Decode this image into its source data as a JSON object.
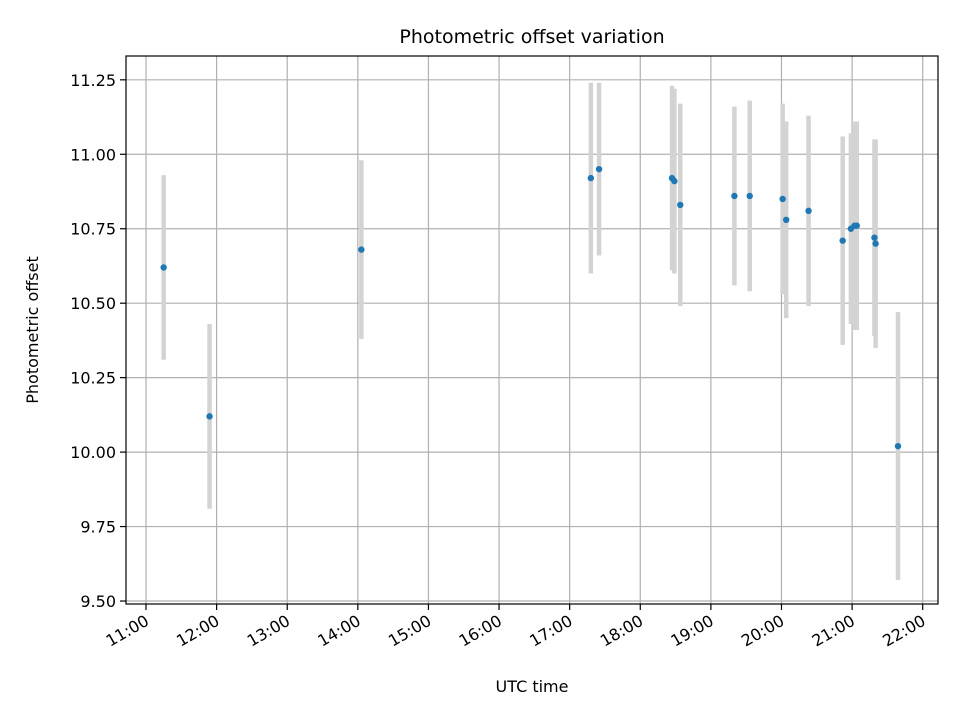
{
  "chart_data": {
    "type": "scatter",
    "title": "Photometric offset variation",
    "xlabel": "UTC time",
    "ylabel": "Photometric offset",
    "x_unit": "UTC",
    "xlim": [
      "10:43",
      "22:13"
    ],
    "ylim": [
      9.49,
      11.33
    ],
    "x_ticks": [
      "11:00",
      "12:00",
      "13:00",
      "14:00",
      "15:00",
      "16:00",
      "17:00",
      "18:00",
      "19:00",
      "20:00",
      "21:00",
      "22:00"
    ],
    "y_ticks": [
      "9.50",
      "9.75",
      "10.00",
      "10.25",
      "10.50",
      "10.75",
      "11.00",
      "11.25"
    ],
    "grid": true,
    "point_color": "#1f77b4",
    "errorbar_color": "#d3d3d3",
    "points": [
      {
        "x": "11:15",
        "y": 10.62,
        "err": 0.31
      },
      {
        "x": "11:54",
        "y": 10.12,
        "err": 0.31
      },
      {
        "x": "14:03",
        "y": 10.68,
        "err": 0.3
      },
      {
        "x": "17:18",
        "y": 10.92,
        "err": 0.32
      },
      {
        "x": "17:25",
        "y": 10.95,
        "err": 0.29
      },
      {
        "x": "18:27",
        "y": 10.92,
        "err": 0.31
      },
      {
        "x": "18:29",
        "y": 10.91,
        "err": 0.31
      },
      {
        "x": "18:34",
        "y": 10.83,
        "err": 0.34
      },
      {
        "x": "19:20",
        "y": 10.86,
        "err": 0.3
      },
      {
        "x": "19:33",
        "y": 10.86,
        "err": 0.32
      },
      {
        "x": "20:01",
        "y": 10.85,
        "err": 0.32
      },
      {
        "x": "20:04",
        "y": 10.78,
        "err": 0.33
      },
      {
        "x": "20:23",
        "y": 10.81,
        "err": 0.32
      },
      {
        "x": "20:52",
        "y": 10.71,
        "err": 0.35
      },
      {
        "x": "20:59",
        "y": 10.75,
        "err": 0.32
      },
      {
        "x": "21:02",
        "y": 10.76,
        "err": 0.35
      },
      {
        "x": "21:04",
        "y": 10.76,
        "err": 0.35
      },
      {
        "x": "21:19",
        "y": 10.72,
        "err": 0.33
      },
      {
        "x": "21:20",
        "y": 10.7,
        "err": 0.35
      },
      {
        "x": "21:39",
        "y": 10.02,
        "err": 0.45
      }
    ]
  }
}
